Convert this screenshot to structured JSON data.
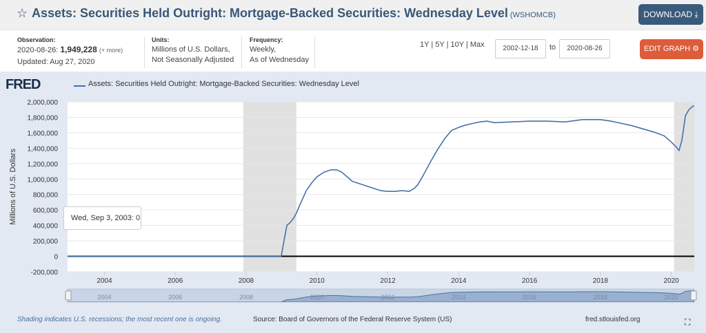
{
  "header": {
    "title": "Assets: Securities Held Outright: Mortgage-Backed Securities: Wednesday Level",
    "series_id": "(WSHOMCB)",
    "download_label": "DOWNLOAD",
    "download_icon": "download-icon"
  },
  "meta": {
    "observation_label": "Observation:",
    "observation_date": "2020-08-26:",
    "observation_value": "1,949,228",
    "observation_more": "(+ more)",
    "updated": "Updated: Aug 27, 2020",
    "units_label": "Units:",
    "units_line1": "Millions of U.S. Dollars,",
    "units_line2": "Not Seasonally Adjusted",
    "frequency_label": "Frequency:",
    "frequency_line1": "Weekly,",
    "frequency_line2": "As of Wednesday",
    "range_1y": "1Y",
    "range_5y": "5Y",
    "range_10y": "10Y",
    "range_max": "Max",
    "start_date": "2002-12-18",
    "to_label": "to",
    "end_date": "2020-08-26",
    "edit_label": "EDIT GRAPH",
    "edit_icon": "gear-icon"
  },
  "chart_area": {
    "logo": "FRED",
    "legend": "Assets: Securities Held Outright: Mortgage-Backed Securities: Wednesday Level",
    "tooltip_date": "Wed, Sep 3, 2003:",
    "tooltip_value": "0",
    "navigator_labels": [
      "2004",
      "2006",
      "2008",
      "2010",
      "2012",
      "2014",
      "2016",
      "2018",
      "2020"
    ]
  },
  "footer": {
    "recession_note": "Shading indicates U.S. recessions; the most recent one is ongoing.",
    "source": "Source: Board of Governors of the Federal Reserve System (US)",
    "site": "fred.stlouisfed.org"
  },
  "colors": {
    "line": "#4572a7",
    "recession": "#e1e1e1",
    "download_bg": "#3a5a7b",
    "edit_bg": "#dd5c3a"
  },
  "chart_data": {
    "type": "line",
    "title": "Assets: Securities Held Outright: Mortgage-Backed Securities: Wednesday Level",
    "ylabel": "Millions of U.S. Dollars",
    "xlabel": "",
    "xlim": [
      2002.96,
      2020.65
    ],
    "ylim": [
      -200000,
      2000000
    ],
    "x_ticks": [
      2004,
      2006,
      2008,
      2010,
      2012,
      2014,
      2016,
      2018,
      2020
    ],
    "y_ticks": [
      -200000,
      0,
      200000,
      400000,
      600000,
      800000,
      1000000,
      1200000,
      1400000,
      1600000,
      1800000,
      2000000
    ],
    "y_tick_labels": [
      "-200,000",
      "0",
      "200,000",
      "400,000",
      "600,000",
      "800,000",
      "1,000,000",
      "1,200,000",
      "1,400,000",
      "1,600,000",
      "1,800,000",
      "2,000,000"
    ],
    "x_tick_labels": [
      "2004",
      "2006",
      "2008",
      "2010",
      "2012",
      "2014",
      "2016",
      "2018",
      "2020"
    ],
    "recessions": [
      [
        2007.92,
        2009.42
      ],
      [
        2020.08,
        2020.65
      ]
    ],
    "series": [
      {
        "name": "Assets: Securities Held Outright: Mortgage-Backed Securities: Wednesday Level",
        "x": [
          2002.96,
          2008.99,
          2009.08,
          2009.15,
          2009.25,
          2009.35,
          2009.42,
          2009.55,
          2009.7,
          2009.85,
          2010.0,
          2010.2,
          2010.4,
          2010.55,
          2010.7,
          2010.85,
          2011.0,
          2011.2,
          2011.4,
          2011.6,
          2011.8,
          2012.0,
          2012.2,
          2012.4,
          2012.6,
          2012.75,
          2012.85,
          2013.0,
          2013.2,
          2013.4,
          2013.6,
          2013.8,
          2014.0,
          2014.2,
          2014.4,
          2014.6,
          2014.8,
          2015.0,
          2015.5,
          2016.0,
          2016.5,
          2017.0,
          2017.5,
          2018.0,
          2018.3,
          2018.6,
          2018.9,
          2019.2,
          2019.5,
          2019.8,
          2020.0,
          2020.15,
          2020.22,
          2020.3,
          2020.4,
          2020.5,
          2020.6,
          2020.65
        ],
        "y": [
          0,
          0,
          230000,
          400000,
          440000,
          500000,
          560000,
          700000,
          850000,
          950000,
          1030000,
          1090000,
          1120000,
          1120000,
          1090000,
          1030000,
          970000,
          940000,
          910000,
          880000,
          850000,
          840000,
          840000,
          850000,
          840000,
          880000,
          930000,
          1050000,
          1220000,
          1380000,
          1520000,
          1630000,
          1670000,
          1700000,
          1720000,
          1740000,
          1750000,
          1730000,
          1740000,
          1750000,
          1750000,
          1740000,
          1770000,
          1770000,
          1750000,
          1720000,
          1690000,
          1650000,
          1610000,
          1560000,
          1480000,
          1410000,
          1370000,
          1500000,
          1820000,
          1900000,
          1940000,
          1949228
        ]
      }
    ]
  }
}
